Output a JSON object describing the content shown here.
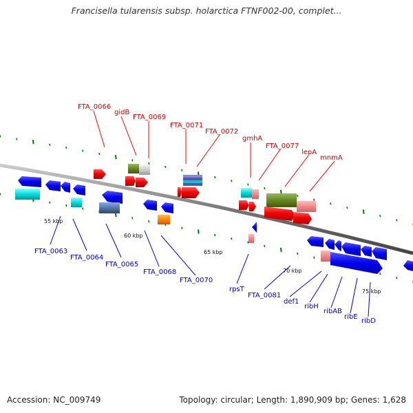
{
  "title": "Francisella tularensis subsp. holarctica FTNF002-00, complet...",
  "footer": {
    "accession": "Accession: NC_009749",
    "summary": "Topology: circular; Length: 1,890,909 bp; Genes: 1,628"
  },
  "scale_labels": [
    "55 kbp",
    "60 kbp",
    "65 kbp",
    "70 kbp",
    "75 kbp"
  ],
  "labels_top": [
    "FTA_0066",
    "gidB",
    "FTA_0069",
    "FTA_0071",
    "FTA_0072",
    "gmhA",
    "FTA_0077",
    "lepA",
    "mnmA"
  ],
  "labels_bottom": [
    "FTA_0063",
    "FTA_0064",
    "FTA_0065",
    "FTA_0068",
    "FTA_0070",
    "rpsT",
    "FTA_0081",
    "def1",
    "ribH",
    "ribAB",
    "ribE",
    "ribD"
  ],
  "colors": {
    "forward_label": "#cc0000",
    "reverse_label": "#0000bb",
    "forward_gene": "#ff0000",
    "reverse_gene": "#0000ee",
    "backbone": "#888888",
    "tick": "#007700"
  }
}
